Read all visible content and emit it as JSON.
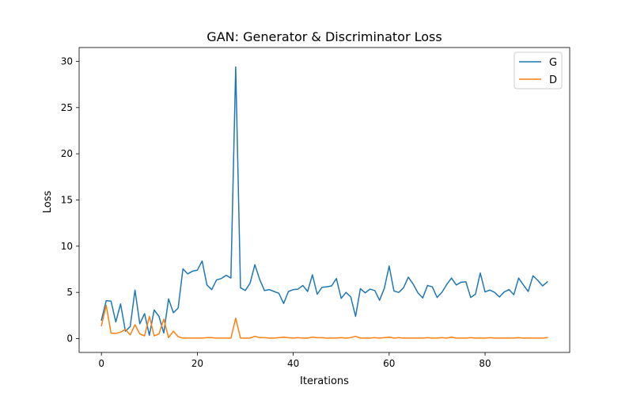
{
  "chart_data": {
    "type": "line",
    "title": "GAN: Generator & Discriminator Loss",
    "xlabel": "Iterations",
    "ylabel": "Loss",
    "xlim": [
      -4.65,
      97.65
    ],
    "ylim": [
      -1.5,
      31.5
    ],
    "xticks": [
      0,
      20,
      40,
      60,
      80
    ],
    "yticks": [
      0,
      5,
      10,
      15,
      20,
      25,
      30
    ],
    "grid": false,
    "legend_position": "top-right",
    "series": [
      {
        "name": "G",
        "color": "#1f77b4",
        "x": [
          0,
          1,
          2,
          3,
          4,
          5,
          6,
          7,
          8,
          9,
          10,
          11,
          12,
          13,
          14,
          15,
          16,
          17,
          18,
          19,
          20,
          21,
          22,
          23,
          24,
          25,
          26,
          27,
          28,
          29,
          30,
          31,
          32,
          33,
          34,
          35,
          36,
          37,
          38,
          39,
          40,
          41,
          42,
          43,
          44,
          45,
          46,
          47,
          48,
          49,
          50,
          51,
          52,
          53,
          54,
          55,
          56,
          57,
          58,
          59,
          60,
          61,
          62,
          63,
          64,
          65,
          66,
          67,
          68,
          69,
          70,
          71,
          72,
          73,
          74,
          75,
          76,
          77,
          78,
          79,
          80,
          81,
          82,
          83,
          84,
          85,
          86,
          87,
          88,
          89,
          90,
          91,
          92,
          93
        ],
        "values": [
          2.0,
          4.1,
          4.05,
          1.8,
          3.75,
          0.8,
          1.3,
          5.25,
          1.6,
          2.7,
          0.35,
          3.1,
          2.4,
          0.6,
          4.3,
          2.8,
          3.3,
          7.55,
          7.0,
          7.3,
          7.4,
          8.4,
          5.8,
          5.3,
          6.35,
          6.5,
          6.85,
          6.55,
          29.4,
          5.5,
          5.2,
          6.0,
          8.0,
          6.4,
          5.2,
          5.3,
          5.1,
          4.9,
          3.8,
          5.1,
          5.3,
          5.35,
          5.75,
          5.1,
          6.9,
          4.8,
          5.55,
          5.6,
          5.7,
          6.5,
          4.35,
          5.0,
          4.5,
          2.4,
          5.4,
          4.95,
          5.35,
          5.2,
          4.15,
          5.45,
          7.85,
          5.15,
          5.0,
          5.5,
          6.65,
          5.9,
          4.95,
          4.4,
          5.75,
          5.6,
          4.45,
          5.0,
          5.85,
          6.55,
          5.8,
          6.1,
          6.15,
          4.45,
          4.8,
          7.1,
          5.05,
          5.25,
          5.0,
          4.5,
          5.05,
          5.3,
          4.75,
          6.55,
          5.8,
          5.1,
          6.8,
          6.3,
          5.7,
          6.15
        ]
      },
      {
        "name": "D",
        "color": "#ff7f0e",
        "x": [
          0,
          1,
          2,
          3,
          4,
          5,
          6,
          7,
          8,
          9,
          10,
          11,
          12,
          13,
          14,
          15,
          16,
          17,
          18,
          19,
          20,
          21,
          22,
          23,
          24,
          25,
          26,
          27,
          28,
          29,
          30,
          31,
          32,
          33,
          34,
          35,
          36,
          37,
          38,
          39,
          40,
          41,
          42,
          43,
          44,
          45,
          46,
          47,
          48,
          49,
          50,
          51,
          52,
          53,
          54,
          55,
          56,
          57,
          58,
          59,
          60,
          61,
          62,
          63,
          64,
          65,
          66,
          67,
          68,
          69,
          70,
          71,
          72,
          73,
          74,
          75,
          76,
          77,
          78,
          79,
          80,
          81,
          82,
          83,
          84,
          85,
          86,
          87,
          88,
          89,
          90,
          91,
          92,
          93
        ],
        "values": [
          1.4,
          3.6,
          0.6,
          0.55,
          0.7,
          1.0,
          0.4,
          1.5,
          0.5,
          0.3,
          2.4,
          0.3,
          0.5,
          2.1,
          0.1,
          0.8,
          0.2,
          0.05,
          0.05,
          0.05,
          0.05,
          0.05,
          0.1,
          0.1,
          0.05,
          0.05,
          0.05,
          0.05,
          2.2,
          0.05,
          0.05,
          0.05,
          0.25,
          0.1,
          0.1,
          0.05,
          0.05,
          0.1,
          0.15,
          0.1,
          0.05,
          0.1,
          0.05,
          0.05,
          0.15,
          0.1,
          0.1,
          0.05,
          0.05,
          0.05,
          0.1,
          0.05,
          0.1,
          0.25,
          0.05,
          0.05,
          0.05,
          0.1,
          0.05,
          0.1,
          0.15,
          0.05,
          0.1,
          0.05,
          0.05,
          0.05,
          0.05,
          0.05,
          0.1,
          0.05,
          0.05,
          0.1,
          0.05,
          0.15,
          0.05,
          0.05,
          0.05,
          0.1,
          0.05,
          0.05,
          0.05,
          0.1,
          0.05,
          0.05,
          0.05,
          0.05,
          0.05,
          0.1,
          0.05,
          0.05,
          0.05,
          0.05,
          0.05,
          0.1
        ]
      }
    ]
  }
}
